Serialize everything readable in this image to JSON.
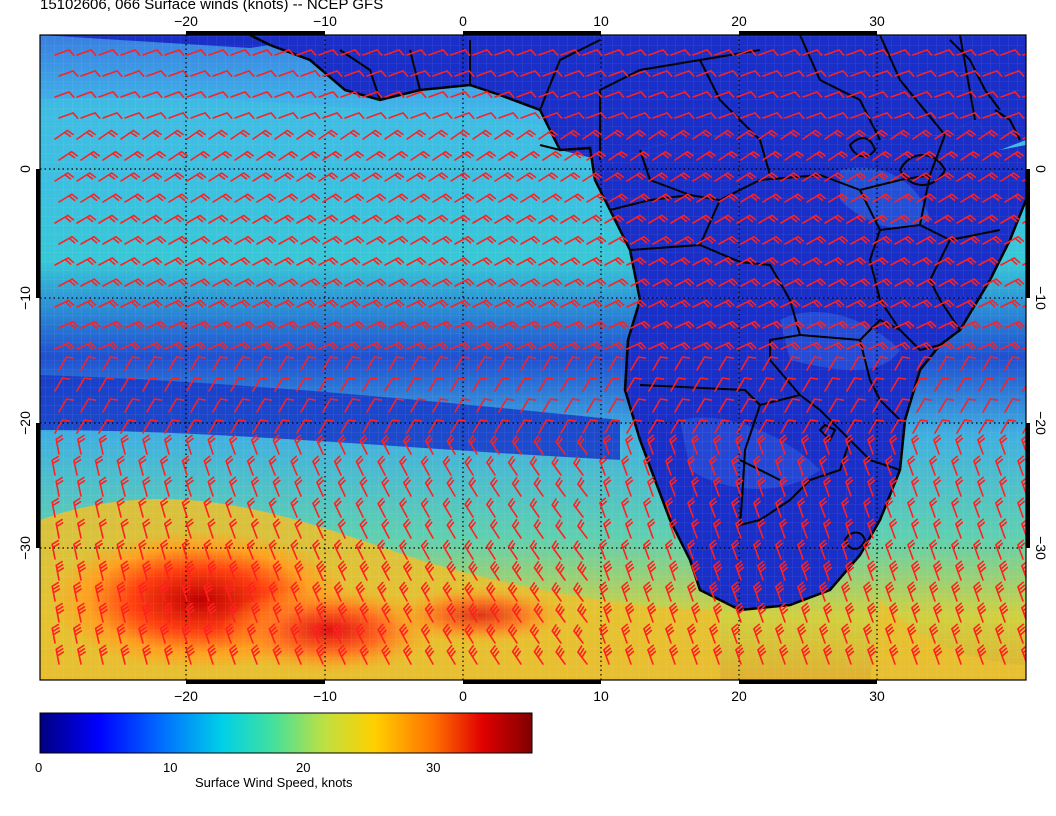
{
  "title": "15102606, 066 Surface winds (knots) -- NCEP GFS",
  "map": {
    "lon_ticks": [
      "−20",
      "−10",
      "0",
      "10",
      "20",
      "30"
    ],
    "lat_ticks": [
      "0",
      "−10",
      "−20",
      "−30"
    ],
    "land_color": "#1230c8",
    "ocean_base_color": "#2f8fe0",
    "barb_color": "#ff2020",
    "coast_color": "#000000"
  },
  "colorbar": {
    "label": "Surface Wind Speed, knots",
    "ticks": [
      "0",
      "10",
      "20",
      "30"
    ],
    "colors": [
      "#00007f",
      "#0000ff",
      "#0080ff",
      "#00d0e0",
      "#40e0a0",
      "#c0e040",
      "#ffd000",
      "#ff7000",
      "#e00000",
      "#7f0000"
    ]
  }
}
